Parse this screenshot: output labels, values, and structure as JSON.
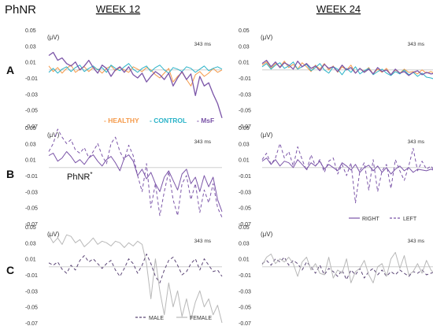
{
  "figure": {
    "measure_label": "PhNR",
    "columns": [
      "WEEK 12",
      "WEEK 24"
    ],
    "rows": [
      "A",
      "B",
      "C"
    ],
    "unit_label": "(μV)",
    "time_marker": "343 ms",
    "peak_label": "PhNR",
    "peak_label_sup": "*"
  },
  "chart_data": [
    {
      "type": "line",
      "row": "A",
      "column": "WEEK 12",
      "yticks": [
        0.05,
        0.03,
        0.01,
        -0.01,
        -0.03,
        -0.05,
        -0.07
      ],
      "ylim": [
        -0.07,
        0.05
      ],
      "legend": {
        "placement": "bottom-right",
        "entries": [
          "- HEALTHY",
          "- CONTROL",
          "- MsF"
        ]
      },
      "series": [
        {
          "name": "HEALTHY",
          "color": "#f59a4a",
          "dash": "solid",
          "values": [
            0.005,
            -0.002,
            0.003,
            -0.004,
            0.002,
            0.006,
            -0.003,
            0.001,
            0.004,
            -0.002,
            0.003,
            0.001,
            -0.004,
            0.002,
            0.005,
            -0.001,
            0.003,
            0.0,
            -0.003,
            0.004,
            0.001,
            -0.002,
            0.003,
            0.0,
            -0.006,
            -0.01,
            -0.004,
            0.002,
            -0.015,
            -0.008,
            -0.003,
            -0.012,
            -0.02,
            -0.006,
            -0.002,
            -0.008,
            -0.004,
            0.002,
            -0.003,
            0.0
          ]
        },
        {
          "name": "CONTROL",
          "color": "#2ab3c8",
          "dash": "solid",
          "values": [
            -0.003,
            0.002,
            -0.004,
            0.001,
            0.004,
            -0.002,
            0.003,
            0.006,
            -0.002,
            0.002,
            0.005,
            0.0,
            0.003,
            -0.003,
            0.006,
            0.002,
            -0.001,
            0.004,
            0.008,
            0.001,
            -0.003,
            0.002,
            0.005,
            -0.002,
            0.003,
            0.006,
            0.0,
            -0.004,
            0.003,
            0.001,
            -0.002,
            0.004,
            0.002,
            -0.003,
            0.001,
            0.005,
            -0.001,
            0.002,
            0.004,
            0.001
          ]
        },
        {
          "name": "MsF",
          "color": "#7b55a8",
          "dash": "solid",
          "values": [
            0.018,
            0.022,
            0.012,
            0.015,
            0.008,
            0.005,
            0.01,
            0.0,
            0.005,
            0.012,
            0.003,
            -0.004,
            0.006,
            0.002,
            -0.008,
            0.0,
            0.004,
            -0.003,
            0.004,
            -0.006,
            -0.01,
            -0.004,
            -0.015,
            -0.008,
            -0.002,
            -0.006,
            -0.012,
            -0.004,
            -0.02,
            -0.01,
            -0.002,
            -0.012,
            -0.005,
            -0.032,
            -0.008,
            -0.02,
            -0.016,
            -0.03,
            -0.042,
            -0.06
          ]
        }
      ]
    },
    {
      "type": "line",
      "row": "A",
      "column": "WEEK 24",
      "yticks": [
        0.05,
        0.03,
        0.01,
        -0.01,
        -0.03,
        -0.05,
        -0.07
      ],
      "ylim": [
        -0.07,
        0.05
      ],
      "series": [
        {
          "name": "HEALTHY",
          "color": "#f59a4a",
          "dash": "solid",
          "values": [
            0.006,
            0.01,
            0.002,
            0.008,
            0.004,
            0.011,
            0.003,
            0.007,
            0.001,
            0.009,
            0.004,
            -0.002,
            0.006,
            0.001,
            0.008,
            0.0,
            0.005,
            -0.003,
            0.004,
            0.0,
            0.006,
            -0.004,
            0.002,
            -0.002,
            0.003,
            -0.005,
            0.001,
            -0.003,
            0.002,
            -0.006,
            0.0,
            -0.004,
            0.001,
            -0.003,
            -0.002,
            -0.005,
            0.0,
            -0.004,
            -0.002,
            -0.005
          ]
        },
        {
          "name": "CONTROL",
          "color": "#2ab3c8",
          "dash": "solid",
          "values": [
            0.004,
            0.008,
            0.001,
            0.006,
            0.009,
            0.002,
            0.005,
            0.01,
            0.001,
            0.004,
            0.007,
            -0.001,
            0.003,
            0.008,
            0.0,
            -0.004,
            0.004,
            0.001,
            -0.006,
            0.002,
            -0.003,
            0.004,
            -0.005,
            -0.001,
            0.002,
            -0.006,
            -0.002,
            0.001,
            -0.004,
            -0.007,
            -0.002,
            -0.005,
            0.0,
            -0.006,
            -0.003,
            -0.008,
            -0.004,
            -0.009,
            -0.01,
            -0.012
          ]
        },
        {
          "name": "MsF",
          "color": "#7b55a8",
          "dash": "solid",
          "values": [
            0.008,
            0.012,
            0.004,
            0.01,
            0.003,
            0.009,
            0.006,
            0.001,
            0.011,
            0.004,
            0.008,
            0.002,
            0.005,
            -0.001,
            0.007,
            0.002,
            0.004,
            -0.002,
            0.006,
            0.0,
            0.003,
            -0.004,
            0.002,
            -0.003,
            0.001,
            -0.005,
            0.003,
            -0.002,
            0.0,
            -0.006,
            0.001,
            -0.004,
            -0.002,
            -0.007,
            -0.003,
            -0.001,
            -0.006,
            -0.003,
            -0.005,
            -0.004
          ]
        }
      ]
    },
    {
      "type": "line",
      "row": "B",
      "column": "WEEK 12",
      "yticks": [
        0.05,
        0.03,
        0.01,
        -0.01,
        -0.03,
        -0.05,
        -0.07
      ],
      "ylim": [
        -0.07,
        0.05
      ],
      "series": [
        {
          "name": "RIGHT",
          "color": "#7b55a8",
          "dash": "solid",
          "values": [
            0.015,
            0.018,
            0.008,
            0.012,
            0.02,
            0.014,
            0.006,
            0.01,
            0.004,
            0.012,
            0.016,
            0.008,
            0.002,
            0.01,
            0.014,
            0.006,
            -0.004,
            0.012,
            0.016,
            0.008,
            -0.01,
            -0.002,
            -0.014,
            -0.006,
            -0.02,
            -0.03,
            -0.012,
            -0.004,
            -0.016,
            -0.028,
            -0.008,
            -0.002,
            -0.02,
            -0.012,
            -0.03,
            -0.01,
            -0.024,
            -0.012,
            -0.04,
            -0.055
          ]
        },
        {
          "name": "LEFT",
          "color": "#7b55a8",
          "dash": "dashed",
          "values": [
            0.02,
            0.03,
            0.048,
            0.038,
            0.03,
            0.035,
            0.022,
            0.018,
            0.025,
            0.012,
            0.02,
            0.03,
            0.015,
            0.005,
            0.03,
            0.038,
            0.02,
            0.01,
            0.028,
            0.015,
            -0.01,
            -0.03,
            0.005,
            -0.05,
            -0.02,
            -0.06,
            -0.03,
            -0.005,
            -0.04,
            -0.06,
            -0.02,
            -0.01,
            -0.04,
            -0.02,
            -0.056,
            -0.028,
            -0.044,
            -0.02,
            -0.05,
            -0.062
          ]
        }
      ]
    },
    {
      "type": "line",
      "row": "B",
      "column": "WEEK 24",
      "yticks": [
        0.05,
        0.03,
        0.01,
        -0.01,
        -0.03,
        -0.05,
        -0.07
      ],
      "ylim": [
        -0.07,
        0.05
      ],
      "legend": {
        "placement": "bottom-right",
        "entries": [
          "RIGHT",
          "LEFT"
        ]
      },
      "series": [
        {
          "name": "RIGHT",
          "color": "#7b55a8",
          "dash": "solid",
          "values": [
            0.008,
            0.012,
            0.004,
            0.01,
            0.002,
            0.008,
            0.006,
            0.0,
            0.01,
            0.004,
            -0.002,
            0.006,
            0.002,
            0.008,
            -0.002,
            0.004,
            0.0,
            -0.004,
            0.006,
            0.002,
            -0.003,
            0.004,
            -0.006,
            0.0,
            0.003,
            -0.004,
            0.002,
            -0.006,
            0.0,
            -0.008,
            -0.002,
            0.002,
            -0.004,
            0.0,
            -0.006,
            -0.002,
            -0.003,
            -0.004,
            -0.002,
            -0.004
          ]
        },
        {
          "name": "LEFT",
          "color": "#7b55a8",
          "dash": "dashed",
          "values": [
            0.01,
            0.018,
            0.004,
            0.012,
            0.03,
            0.012,
            0.02,
            0.002,
            0.026,
            0.01,
            -0.004,
            0.016,
            0.002,
            0.01,
            -0.006,
            0.008,
            0.012,
            -0.008,
            0.004,
            -0.01,
            0.006,
            -0.044,
            -0.004,
            0.006,
            -0.028,
            0.01,
            -0.03,
            -0.004,
            0.004,
            -0.026,
            0.01,
            -0.004,
            -0.016,
            0.002,
            0.024,
            -0.004,
            0.008,
            -0.002,
            0.002,
            -0.006
          ]
        }
      ]
    },
    {
      "type": "line",
      "row": "C",
      "column": "WEEK 12",
      "yticks": [
        0.05,
        0.03,
        0.01,
        -0.01,
        -0.03,
        -0.05,
        -0.07
      ],
      "ylim": [
        -0.07,
        0.05
      ],
      "legend": {
        "placement": "bottom-right",
        "entries": [
          "MALE",
          "FEMALE"
        ]
      },
      "series": [
        {
          "name": "MALE",
          "color": "#5a4475",
          "dash": "dashed",
          "values": [
            0.005,
            0.002,
            0.006,
            -0.003,
            -0.008,
            0.002,
            -0.004,
            0.008,
            0.014,
            0.006,
            0.01,
            0.004,
            -0.002,
            0.004,
            0.008,
            -0.004,
            -0.012,
            -0.002,
            0.01,
            0.004,
            -0.008,
            0.002,
            0.016,
            0.004,
            -0.012,
            -0.02,
            -0.004,
            0.008,
            0.012,
            0.002,
            -0.01,
            -0.006,
            0.004,
            0.01,
            -0.004,
            0.01,
            0.002,
            -0.006,
            -0.004,
            -0.012
          ]
        },
        {
          "name": "FEMALE",
          "color": "#b8b8b8",
          "dash": "solid",
          "values": [
            0.04,
            0.03,
            0.036,
            0.028,
            0.04,
            0.038,
            0.03,
            0.034,
            0.025,
            0.03,
            0.036,
            0.028,
            0.032,
            0.03,
            0.026,
            0.032,
            0.03,
            0.024,
            0.03,
            0.026,
            0.032,
            0.028,
            0.004,
            -0.04,
            0.01,
            -0.03,
            -0.06,
            -0.02,
            -0.05,
            -0.03,
            -0.062,
            -0.04,
            -0.066,
            -0.044,
            -0.03,
            -0.05,
            -0.04,
            -0.06,
            -0.048,
            -0.07
          ]
        }
      ]
    },
    {
      "type": "line",
      "row": "C",
      "column": "WEEK 24",
      "yticks": [
        0.05,
        0.03,
        0.01,
        -0.01,
        -0.03,
        -0.05,
        -0.07
      ],
      "ylim": [
        -0.07,
        0.05
      ],
      "series": [
        {
          "name": "MALE",
          "color": "#5a4475",
          "dash": "dashed",
          "values": [
            0.004,
            0.008,
            0.002,
            0.01,
            0.006,
            0.012,
            0.002,
            0.008,
            0.004,
            -0.004,
            0.006,
            0.0,
            -0.008,
            0.002,
            -0.01,
            -0.002,
            -0.006,
            -0.012,
            -0.004,
            -0.016,
            -0.004,
            -0.01,
            -0.002,
            -0.014,
            -0.006,
            -0.002,
            -0.01,
            -0.004,
            -0.012,
            -0.006,
            -0.01,
            -0.004,
            -0.008,
            -0.012,
            -0.006,
            -0.008,
            -0.004,
            -0.01,
            -0.008,
            -0.006
          ]
        },
        {
          "name": "FEMALE",
          "color": "#b8b8b8",
          "dash": "solid",
          "values": [
            0.002,
            0.012,
            0.016,
            0.004,
            0.01,
            0.006,
            0.012,
            0.004,
            -0.012,
            0.006,
            0.012,
            -0.004,
            0.004,
            -0.008,
            -0.01,
            0.012,
            -0.014,
            -0.004,
            -0.008,
            0.01,
            -0.02,
            -0.006,
            -0.002,
            0.008,
            -0.01,
            -0.02,
            0.0,
            0.004,
            -0.012,
            0.01,
            0.018,
            -0.002,
            0.014,
            -0.01,
            -0.006,
            0.004,
            -0.008,
            0.008,
            -0.004,
            -0.01
          ]
        }
      ]
    }
  ]
}
